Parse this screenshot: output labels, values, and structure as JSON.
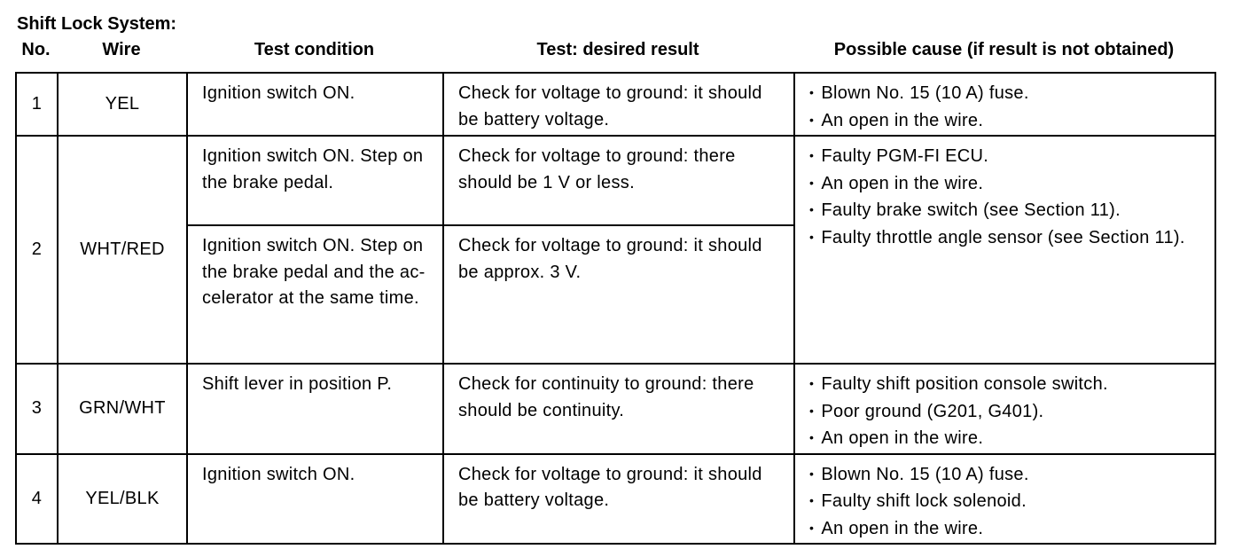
{
  "title": "Shift Lock System:",
  "headers": {
    "no": "No.",
    "wire": "Wire",
    "condition": "Test condition",
    "result": "Test: desired result",
    "cause": "Possible cause (if result is not obtained)"
  },
  "rows": [
    {
      "no": "1",
      "wire": "YEL",
      "tests": [
        {
          "condition": "Ignition switch ON.",
          "result": "Check for voltage to ground: it should be battery voltage."
        }
      ],
      "causes": [
        "Blown No. 15 (10 A) fuse.",
        "An open in the wire."
      ]
    },
    {
      "no": "2",
      "wire": "WHT/RED",
      "tests": [
        {
          "condition": "Ignition switch ON. Step on the brake pedal.",
          "result": "Check for voltage to ground: there should be 1 V or less."
        },
        {
          "condition": "Ignition switch ON. Step on the brake pedal and the ac-celerator at the same time.",
          "result": "Check for voltage to ground: it should be approx. 3 V."
        }
      ],
      "causes": [
        "Faulty PGM-FI ECU.",
        "An open in the wire.",
        "Faulty brake switch (see Section 11).",
        "Faulty throttle angle sensor (see Section 11)."
      ]
    },
    {
      "no": "3",
      "wire": "GRN/WHT",
      "tests": [
        {
          "condition": "Shift lever in position P.",
          "result": "Check for continuity to ground: there should be continuity."
        }
      ],
      "causes": [
        "Faulty shift position console switch.",
        "Poor ground (G201, G401).",
        "An open in the wire."
      ]
    },
    {
      "no": "4",
      "wire": "YEL/BLK",
      "tests": [
        {
          "condition": "Ignition switch ON.",
          "result": "Check for voltage to ground: it should be battery voltage."
        }
      ],
      "causes": [
        "Blown No. 15 (10 A) fuse.",
        "Faulty shift lock solenoid.",
        "An open in the wire."
      ]
    }
  ]
}
